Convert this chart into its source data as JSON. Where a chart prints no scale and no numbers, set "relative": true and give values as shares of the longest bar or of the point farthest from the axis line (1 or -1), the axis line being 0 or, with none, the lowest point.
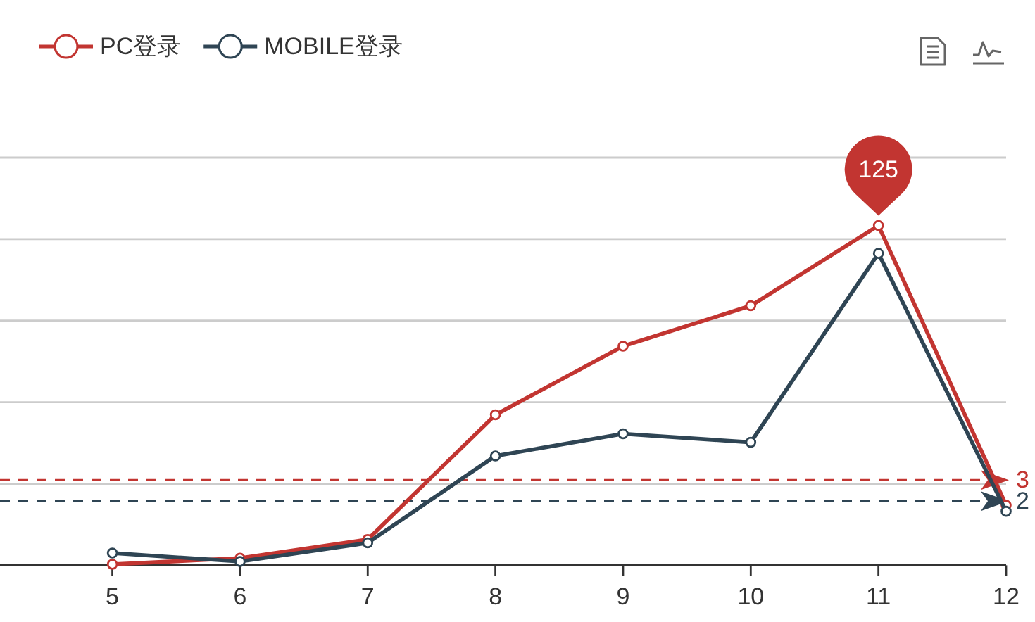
{
  "chart_data": {
    "type": "line",
    "relative": true,
    "x": [
      5,
      6,
      7,
      8,
      9,
      10,
      11,
      12
    ],
    "xlim": [
      4.12,
      12
    ],
    "xticks": [
      5,
      6,
      7,
      8,
      9,
      10,
      11,
      12
    ],
    "tick_labels": "x",
    "grid": "y",
    "legend": "top left",
    "marker": "circle",
    "line_style": "solid",
    "series": [
      {
        "name": "PC登录",
        "color": "#c23531",
        "values": [
          0.003,
          0.021,
          0.076,
          0.443,
          0.645,
          0.764,
          1,
          0.177
        ]
      },
      {
        "name": "MOBILE登录",
        "color": "#2f4554",
        "values": [
          0.036,
          0.011,
          0.066,
          0.322,
          0.387,
          0.362,
          0.918,
          0.159
        ]
      }
    ],
    "ref_lines": [
      {
        "axis": "y",
        "value": 0.251,
        "color": "#c23531",
        "line_style": "dashed"
      },
      {
        "axis": "y",
        "value": 0.189,
        "color": "#2f4554",
        "line_style": "dashed"
      }
    ],
    "annotations": [
      {
        "text": "125",
        "x": 11,
        "y": 1
      },
      "3",
      "2"
    ]
  }
}
